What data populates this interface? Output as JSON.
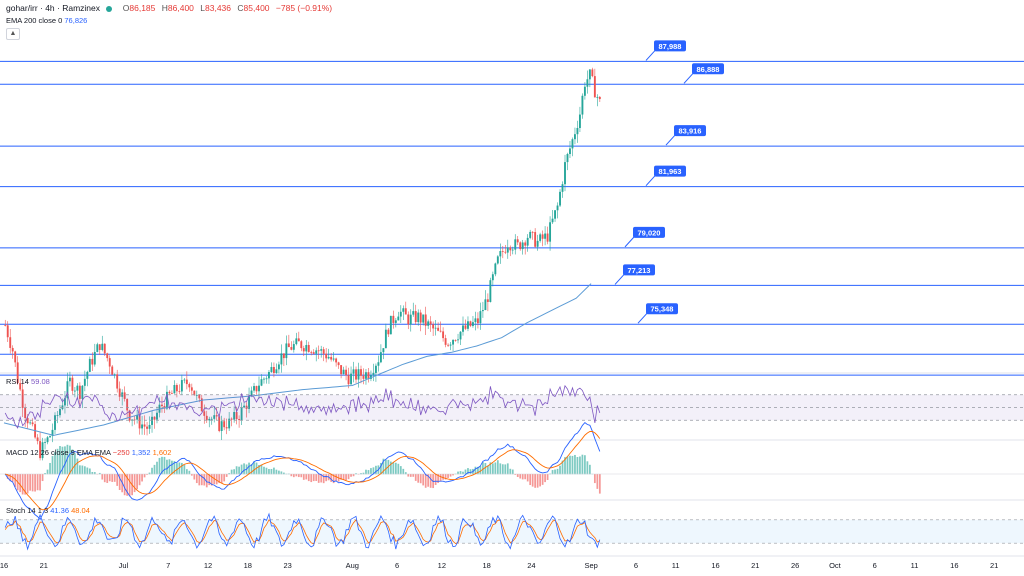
{
  "header": {
    "symbol": "gohar/irr · 4h · Ramzinex",
    "o_label": "O",
    "o_value": "86,185",
    "h_label": "H",
    "h_value": "86,400",
    "l_label": "L",
    "l_value": "83,436",
    "c_label": "C",
    "c_value": "85,400",
    "change": "−785 (−0.91%)",
    "ema_label": "EMA 200 close 0",
    "ema_value": "76,826"
  },
  "collapse_icon": "chevron-up-icon",
  "rsi": {
    "label": "RSI 14",
    "value": "59.08"
  },
  "macd": {
    "label": "MACD 12 26 close 9 EMA EMA",
    "hist": "−250",
    "macd": "1,352",
    "signal": "1,602"
  },
  "stoch": {
    "label": "Stoch 14 1 3",
    "k": "41.36",
    "d": "48.04"
  },
  "colors": {
    "up": "#26a69a",
    "down": "#ef5350",
    "line": "#2962ff",
    "ema": "#5b9bd5",
    "rsi": "#7e57c2",
    "macd": "#2962ff",
    "signal": "#ff6d00",
    "k": "#2962ff",
    "d": "#ff6d00"
  },
  "chart_data": {
    "type": "candlestick",
    "price_range": [
      73000,
      89500
    ],
    "horizontal_levels": [
      {
        "price": 87988,
        "label": "87,988",
        "show_label": true
      },
      {
        "price": 86888,
        "label": "86,888",
        "show_label": true
      },
      {
        "price": 83916,
        "label": "83,916",
        "show_label": true
      },
      {
        "price": 81963,
        "label": "81,963",
        "show_label": true
      },
      {
        "price": 79020,
        "label": "79,020",
        "show_label": true
      },
      {
        "price": 77213,
        "label": "77,213",
        "show_label": true
      },
      {
        "price": 75348,
        "label": "75,348",
        "show_label": true
      },
      {
        "price": 73900,
        "label": "",
        "show_label": false
      },
      {
        "price": 72900,
        "label": "",
        "show_label": false
      }
    ],
    "price_path": [
      [
        0,
        75300
      ],
      [
        3,
        74100
      ],
      [
        5,
        72700
      ],
      [
        8,
        71100
      ],
      [
        11,
        70200
      ],
      [
        14,
        69200
      ],
      [
        18,
        70000
      ],
      [
        22,
        71300
      ],
      [
        26,
        72600
      ],
      [
        30,
        72100
      ],
      [
        34,
        73400
      ],
      [
        38,
        74400
      ],
      [
        42,
        73500
      ],
      [
        46,
        72200
      ],
      [
        50,
        71000
      ],
      [
        54,
        70600
      ],
      [
        58,
        70300
      ],
      [
        62,
        71300
      ],
      [
        66,
        71900
      ],
      [
        70,
        72300
      ],
      [
        74,
        72600
      ],
      [
        78,
        71500
      ],
      [
        82,
        70900
      ],
      [
        86,
        70500
      ],
      [
        90,
        70600
      ],
      [
        94,
        71000
      ],
      [
        98,
        71700
      ],
      [
        102,
        72500
      ],
      [
        106,
        73000
      ],
      [
        110,
        73700
      ],
      [
        114,
        74200
      ],
      [
        118,
        74400
      ],
      [
        122,
        74300
      ],
      [
        126,
        74100
      ],
      [
        130,
        73800
      ],
      [
        134,
        73200
      ],
      [
        138,
        72800
      ],
      [
        142,
        72900
      ],
      [
        146,
        73000
      ],
      [
        150,
        73700
      ],
      [
        154,
        75200
      ],
      [
        158,
        76000
      ],
      [
        162,
        75600
      ],
      [
        166,
        75700
      ],
      [
        170,
        75300
      ],
      [
        174,
        74900
      ],
      [
        178,
        74500
      ],
      [
        182,
        74900
      ],
      [
        186,
        75200
      ],
      [
        190,
        75500
      ],
      [
        194,
        76700
      ],
      [
        198,
        78400
      ],
      [
        202,
        79300
      ],
      [
        206,
        79100
      ],
      [
        210,
        79600
      ],
      [
        214,
        79300
      ],
      [
        218,
        79600
      ],
      [
        222,
        81000
      ],
      [
        225,
        83000
      ],
      [
        228,
        84200
      ],
      [
        231,
        85500
      ],
      [
        233,
        87000
      ],
      [
        235,
        87300
      ],
      [
        237,
        86600
      ],
      [
        239,
        86000
      ],
      [
        240,
        85400
      ]
    ],
    "ema_path": [
      [
        0,
        70600
      ],
      [
        20,
        70000
      ],
      [
        40,
        70500
      ],
      [
        60,
        71200
      ],
      [
        80,
        71700
      ],
      [
        100,
        71900
      ],
      [
        120,
        72200
      ],
      [
        140,
        72400
      ],
      [
        150,
        72900
      ],
      [
        160,
        73400
      ],
      [
        170,
        73800
      ],
      [
        180,
        74000
      ],
      [
        190,
        74300
      ],
      [
        200,
        74700
      ],
      [
        210,
        75400
      ],
      [
        220,
        76000
      ],
      [
        230,
        76600
      ],
      [
        236,
        77300
      ]
    ],
    "x_ticks": [
      {
        "bar": 0,
        "label": "16"
      },
      {
        "bar": 16,
        "label": "21"
      },
      {
        "bar": 48,
        "label": "Jul"
      },
      {
        "bar": 66,
        "label": "7"
      },
      {
        "bar": 82,
        "label": "12"
      },
      {
        "bar": 98,
        "label": "18"
      },
      {
        "bar": 114,
        "label": "23"
      },
      {
        "bar": 140,
        "label": "Aug"
      },
      {
        "bar": 158,
        "label": "6"
      },
      {
        "bar": 176,
        "label": "12"
      },
      {
        "bar": 194,
        "label": "18"
      },
      {
        "bar": 212,
        "label": "24"
      },
      {
        "bar": 236,
        "label": "Sep"
      },
      {
        "bar": 254,
        "label": "6"
      },
      {
        "bar": 270,
        "label": "11"
      },
      {
        "bar": 286,
        "label": "16"
      },
      {
        "bar": 302,
        "label": "21"
      },
      {
        "bar": 318,
        "label": "26"
      },
      {
        "bar": 334,
        "label": "Oct"
      },
      {
        "bar": 350,
        "label": "6"
      },
      {
        "bar": 366,
        "label": "11"
      },
      {
        "bar": 382,
        "label": "16"
      },
      {
        "bar": 398,
        "label": "21"
      }
    ],
    "bar_count": 240,
    "view_bars": 410,
    "rsi": {
      "upper": 70,
      "lower": 30,
      "range": [
        10,
        90
      ]
    },
    "stoch": {
      "upper": 80,
      "lower": 20,
      "range": [
        0,
        100
      ]
    }
  }
}
